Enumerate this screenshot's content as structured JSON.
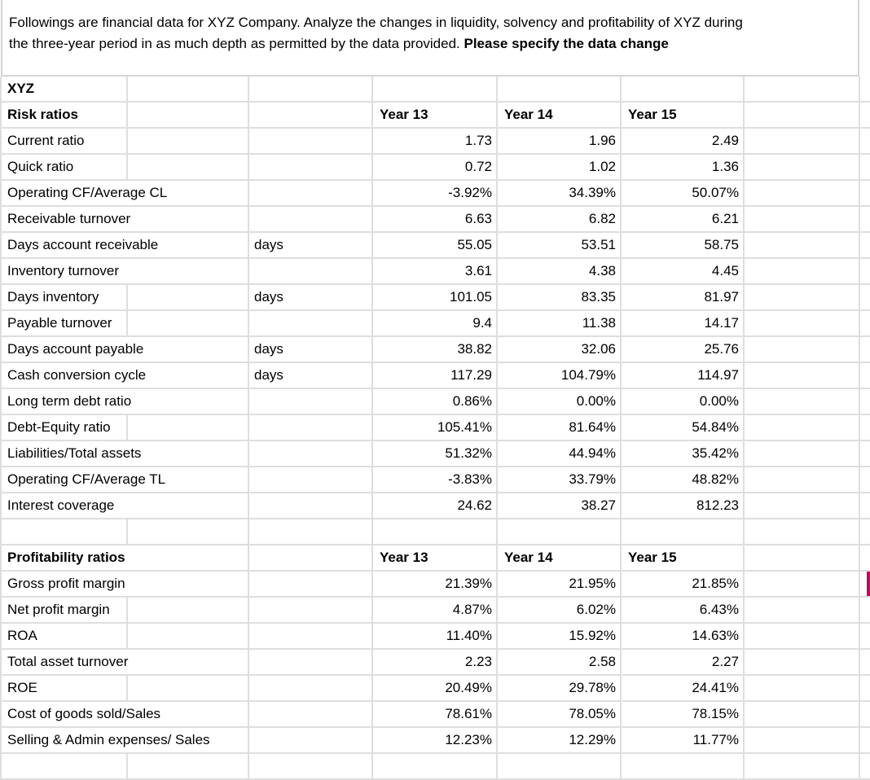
{
  "instructions": {
    "line1": "Followings are financial data for XYZ Company. Analyze the changes in liquidity, solvency and profitability of XYZ during",
    "line2_regular": "the three-year period in as much depth as permitted by the data provided. ",
    "line2_bold": "Please specify the data change"
  },
  "colors": {
    "change_marker": "#b70d5b"
  },
  "sheet": {
    "year_columns": [
      "Year 13",
      "Year 14",
      "Year 15"
    ],
    "rows": [
      {
        "label": "XYZ",
        "style": "title",
        "divider": true
      },
      {
        "label": "Risk ratios",
        "style": "header",
        "values": [
          "Year 13",
          "Year 14",
          "Year 15"
        ],
        "divider": true
      },
      {
        "label": "Current ratio",
        "style": "data",
        "values": [
          "1.73",
          "1.96",
          "2.49"
        ],
        "divider": true
      },
      {
        "label": "Quick ratio",
        "style": "data",
        "values": [
          "0.72",
          "1.02",
          "1.36"
        ],
        "divider": true
      },
      {
        "label": "Operating CF/Average CL",
        "style": "data",
        "values": [
          "-3.92%",
          "34.39%",
          "50.07%"
        ],
        "divider": false
      },
      {
        "label": "Receivable turnover",
        "style": "data",
        "values": [
          "6.63",
          "6.82",
          "6.21"
        ],
        "divider": false
      },
      {
        "label": "Days account receivable",
        "unit": "days",
        "style": "data",
        "values": [
          "55.05",
          "53.51",
          "58.75"
        ],
        "divider": false
      },
      {
        "label": "Inventory turnover",
        "style": "data",
        "values": [
          "3.61",
          "4.38",
          "4.45"
        ],
        "divider": false
      },
      {
        "label": "Days inventory",
        "unit": "days",
        "style": "data",
        "values": [
          "101.05",
          "83.35",
          "81.97"
        ],
        "divider": true
      },
      {
        "label": "Payable turnover",
        "style": "data",
        "values": [
          "9.4",
          "11.38",
          "14.17"
        ],
        "divider": true
      },
      {
        "label": "Days account payable",
        "unit": "days",
        "style": "data",
        "values": [
          "38.82",
          "32.06",
          "25.76"
        ],
        "divider": false
      },
      {
        "label": "Cash conversion cycle",
        "unit": "days",
        "style": "data",
        "values": [
          "117.29",
          "104.79%",
          "114.97"
        ],
        "divider": false
      },
      {
        "label": "Long term debt ratio",
        "style": "data",
        "values": [
          "0.86%",
          "0.00%",
          "0.00%"
        ],
        "divider": false
      },
      {
        "label": "Debt-Equity ratio",
        "style": "data",
        "values": [
          "105.41%",
          "81.64%",
          "54.84%"
        ],
        "divider": true
      },
      {
        "label": "Liabilities/Total assets",
        "style": "data",
        "values": [
          "51.32%",
          "44.94%",
          "35.42%"
        ],
        "divider": false
      },
      {
        "label": "Operating CF/Average TL",
        "style": "data",
        "values": [
          "-3.83%",
          "33.79%",
          "48.82%"
        ],
        "divider": false
      },
      {
        "label": "Interest coverage",
        "style": "data",
        "values": [
          "24.62",
          "38.27",
          "812.23"
        ],
        "divider": false
      },
      {
        "style": "empty",
        "divider": true
      },
      {
        "label": "Profitability ratios",
        "style": "header",
        "values": [
          "Year 13",
          "Year 14",
          "Year 15"
        ],
        "divider": false
      },
      {
        "label": "Gross profit margin",
        "style": "data",
        "values": [
          "21.39%",
          "21.95%",
          "21.85%"
        ],
        "divider": false,
        "marker": true
      },
      {
        "label": "Net profit margin",
        "style": "data",
        "values": [
          "4.87%",
          "6.02%",
          "6.43%"
        ],
        "divider": true
      },
      {
        "label": "ROA",
        "style": "data",
        "values": [
          "11.40%",
          "15.92%",
          "14.63%"
        ],
        "divider": true
      },
      {
        "label": "Total asset turnover",
        "style": "data",
        "values": [
          "2.23",
          "2.58",
          "2.27"
        ],
        "divider": false
      },
      {
        "label": "ROE",
        "style": "data",
        "values": [
          "20.49%",
          "29.78%",
          "24.41%"
        ],
        "divider": true
      },
      {
        "label": "Cost of goods sold/Sales",
        "style": "data",
        "values": [
          "78.61%",
          "78.05%",
          "78.15%"
        ],
        "divider": false
      },
      {
        "label": "Selling & Admin expenses/ Sales",
        "style": "data",
        "values": [
          "12.23%",
          "12.29%",
          "11.77%"
        ],
        "divider": false
      },
      {
        "style": "empty",
        "divider": true
      }
    ]
  }
}
